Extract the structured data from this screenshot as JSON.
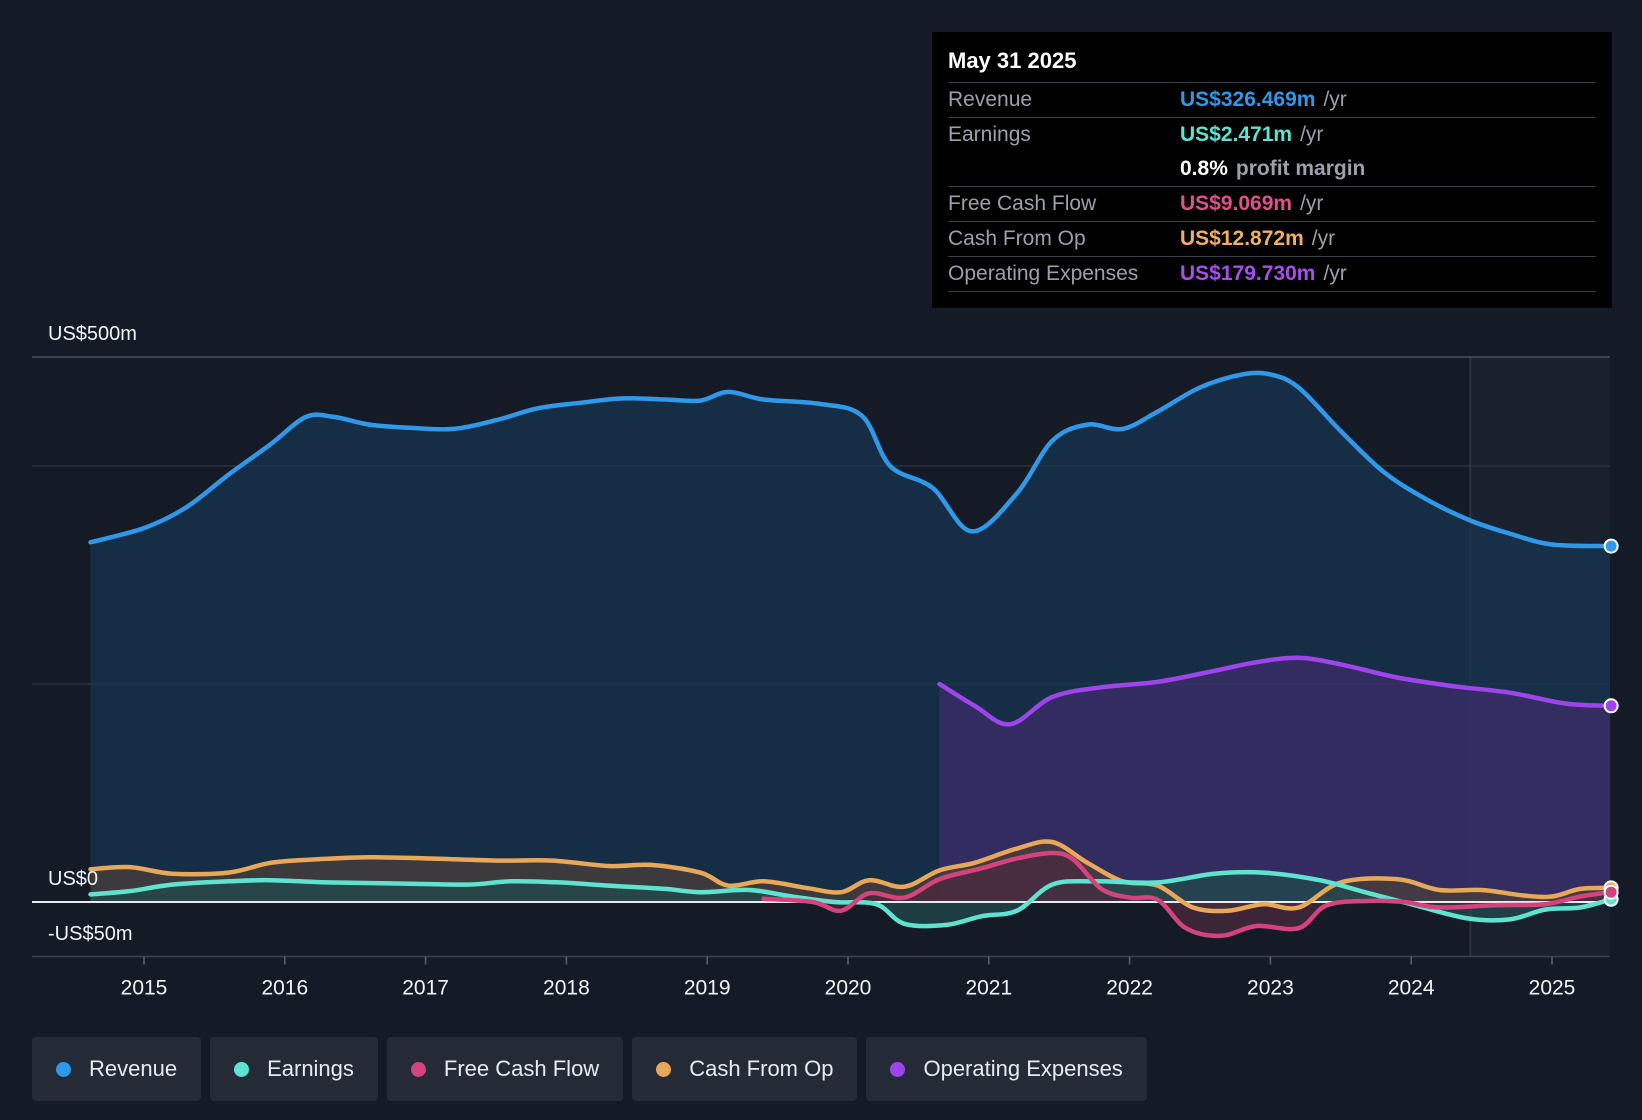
{
  "tooltip": {
    "date": "May 31 2025",
    "rows": [
      {
        "label": "Revenue",
        "value": "US$326.469m",
        "unit": "/yr",
        "color": "#2f98e8"
      },
      {
        "label": "Earnings",
        "value": "US$2.471m",
        "unit": "/yr",
        "color": "#5fe3d0"
      },
      {
        "label": "",
        "value": "0.8%",
        "unit": "profit margin",
        "color": "#ffffff"
      },
      {
        "label": "Free Cash Flow",
        "value": "US$9.069m",
        "unit": "/yr",
        "color": "#e0508c"
      },
      {
        "label": "Cash From Op",
        "value": "US$12.872m",
        "unit": "/yr",
        "color": "#f0b060"
      },
      {
        "label": "Operating Expenses",
        "value": "US$179.730m",
        "unit": "/yr",
        "color": "#a84df0"
      }
    ]
  },
  "legend": [
    {
      "label": "Revenue",
      "color": "#2f98e8"
    },
    {
      "label": "Earnings",
      "color": "#5fe3d0"
    },
    {
      "label": "Free Cash Flow",
      "color": "#d4437c"
    },
    {
      "label": "Cash From Op",
      "color": "#e8a85a"
    },
    {
      "label": "Operating Expenses",
      "color": "#9d45ea"
    }
  ],
  "chart_data": {
    "type": "line",
    "title": "",
    "ylim": [
      -50,
      500
    ],
    "y_axis_labels": [
      "US$500m",
      "US$0",
      "-US$50m"
    ],
    "x_ticks": [
      2015,
      2016,
      2017,
      2018,
      2019,
      2020,
      2021,
      2022,
      2023,
      2024,
      2025
    ],
    "x_range": [
      2014.6,
      2025.42
    ],
    "forecast_start": 2024.42,
    "series": [
      {
        "name": "Revenue",
        "color": "#2f98e8",
        "fill": "#173650",
        "points": [
          [
            2014.62,
            330
          ],
          [
            2015.0,
            343
          ],
          [
            2015.3,
            362
          ],
          [
            2015.6,
            392
          ],
          [
            2015.9,
            420
          ],
          [
            2016.15,
            445
          ],
          [
            2016.35,
            445
          ],
          [
            2016.6,
            438
          ],
          [
            2016.9,
            435
          ],
          [
            2017.2,
            434
          ],
          [
            2017.5,
            442
          ],
          [
            2017.8,
            453
          ],
          [
            2018.1,
            458
          ],
          [
            2018.4,
            462
          ],
          [
            2018.7,
            461
          ],
          [
            2018.95,
            460
          ],
          [
            2019.15,
            468
          ],
          [
            2019.4,
            461
          ],
          [
            2019.8,
            457
          ],
          [
            2020.1,
            446
          ],
          [
            2020.3,
            400
          ],
          [
            2020.6,
            380
          ],
          [
            2020.88,
            340
          ],
          [
            2021.2,
            375
          ],
          [
            2021.45,
            423
          ],
          [
            2021.7,
            438
          ],
          [
            2021.95,
            434
          ],
          [
            2022.2,
            450
          ],
          [
            2022.5,
            472
          ],
          [
            2022.8,
            484
          ],
          [
            2023.0,
            484
          ],
          [
            2023.2,
            472
          ],
          [
            2023.5,
            432
          ],
          [
            2023.8,
            395
          ],
          [
            2024.1,
            370
          ],
          [
            2024.42,
            350
          ],
          [
            2024.7,
            338
          ],
          [
            2025.0,
            328
          ],
          [
            2025.42,
            326.5
          ]
        ]
      },
      {
        "name": "Operating Expenses",
        "color": "#9d45ea",
        "fill": "#3d2c6a",
        "points": [
          [
            2020.65,
            200
          ],
          [
            2020.9,
            180
          ],
          [
            2021.15,
            163
          ],
          [
            2021.45,
            188
          ],
          [
            2021.8,
            197
          ],
          [
            2022.2,
            202
          ],
          [
            2022.6,
            212
          ],
          [
            2022.9,
            220
          ],
          [
            2023.2,
            224
          ],
          [
            2023.5,
            218
          ],
          [
            2023.9,
            206
          ],
          [
            2024.3,
            198
          ],
          [
            2024.7,
            192
          ],
          [
            2025.1,
            182
          ],
          [
            2025.42,
            180
          ]
        ]
      },
      {
        "name": "Cash From Op",
        "color": "#e8a85a",
        "fill": "#4a3f3a",
        "points": [
          [
            2014.62,
            30
          ],
          [
            2014.9,
            32
          ],
          [
            2015.2,
            26
          ],
          [
            2015.6,
            27
          ],
          [
            2015.9,
            36
          ],
          [
            2016.2,
            39
          ],
          [
            2016.6,
            41
          ],
          [
            2017.0,
            40
          ],
          [
            2017.5,
            38
          ],
          [
            2017.9,
            38
          ],
          [
            2018.3,
            33
          ],
          [
            2018.6,
            34
          ],
          [
            2018.95,
            27
          ],
          [
            2019.15,
            15
          ],
          [
            2019.4,
            19
          ],
          [
            2019.7,
            13
          ],
          [
            2019.95,
            9
          ],
          [
            2020.15,
            20
          ],
          [
            2020.4,
            14
          ],
          [
            2020.65,
            29
          ],
          [
            2020.9,
            36
          ],
          [
            2021.2,
            49
          ],
          [
            2021.45,
            55
          ],
          [
            2021.7,
            36
          ],
          [
            2021.95,
            19
          ],
          [
            2022.2,
            15
          ],
          [
            2022.45,
            -5
          ],
          [
            2022.7,
            -8
          ],
          [
            2022.95,
            -2
          ],
          [
            2023.2,
            -5
          ],
          [
            2023.5,
            18
          ],
          [
            2023.9,
            21
          ],
          [
            2024.2,
            11
          ],
          [
            2024.5,
            11
          ],
          [
            2024.8,
            6
          ],
          [
            2025.0,
            5
          ],
          [
            2025.2,
            12
          ],
          [
            2025.42,
            13
          ]
        ]
      },
      {
        "name": "Earnings",
        "color": "#5fe3d0",
        "fill": "#214a4c",
        "points": [
          [
            2014.62,
            7
          ],
          [
            2014.9,
            10
          ],
          [
            2015.2,
            16
          ],
          [
            2015.6,
            19
          ],
          [
            2015.9,
            20
          ],
          [
            2016.3,
            18
          ],
          [
            2016.8,
            17
          ],
          [
            2017.3,
            16
          ],
          [
            2017.6,
            19
          ],
          [
            2017.95,
            18
          ],
          [
            2018.3,
            15
          ],
          [
            2018.7,
            12
          ],
          [
            2018.95,
            9
          ],
          [
            2019.3,
            11
          ],
          [
            2019.6,
            5
          ],
          [
            2019.9,
            0
          ],
          [
            2020.2,
            -2
          ],
          [
            2020.4,
            -20
          ],
          [
            2020.7,
            -21
          ],
          [
            2020.95,
            -13
          ],
          [
            2021.2,
            -8
          ],
          [
            2021.45,
            16
          ],
          [
            2021.75,
            19
          ],
          [
            2022.2,
            18
          ],
          [
            2022.6,
            26
          ],
          [
            2022.95,
            27
          ],
          [
            2023.35,
            20
          ],
          [
            2023.7,
            8
          ],
          [
            2024.0,
            -2
          ],
          [
            2024.4,
            -15
          ],
          [
            2024.7,
            -16
          ],
          [
            2024.95,
            -7
          ],
          [
            2025.2,
            -5
          ],
          [
            2025.42,
            2.5
          ]
        ]
      },
      {
        "name": "Free Cash Flow",
        "color": "#d4437c",
        "fill": "#4a2a3c",
        "points": [
          [
            2019.4,
            3
          ],
          [
            2019.75,
            0
          ],
          [
            2019.95,
            -8
          ],
          [
            2020.15,
            8
          ],
          [
            2020.4,
            4
          ],
          [
            2020.65,
            21
          ],
          [
            2020.95,
            31
          ],
          [
            2021.2,
            40
          ],
          [
            2021.45,
            45
          ],
          [
            2021.6,
            39
          ],
          [
            2021.8,
            12
          ],
          [
            2022.0,
            4
          ],
          [
            2022.2,
            2
          ],
          [
            2022.4,
            -24
          ],
          [
            2022.65,
            -31
          ],
          [
            2022.9,
            -22
          ],
          [
            2023.2,
            -24
          ],
          [
            2023.4,
            -3
          ],
          [
            2023.7,
            1
          ],
          [
            2023.95,
            0
          ],
          [
            2024.2,
            -5
          ],
          [
            2024.6,
            -3
          ],
          [
            2024.95,
            -2
          ],
          [
            2025.2,
            5
          ],
          [
            2025.42,
            9
          ]
        ]
      }
    ]
  }
}
